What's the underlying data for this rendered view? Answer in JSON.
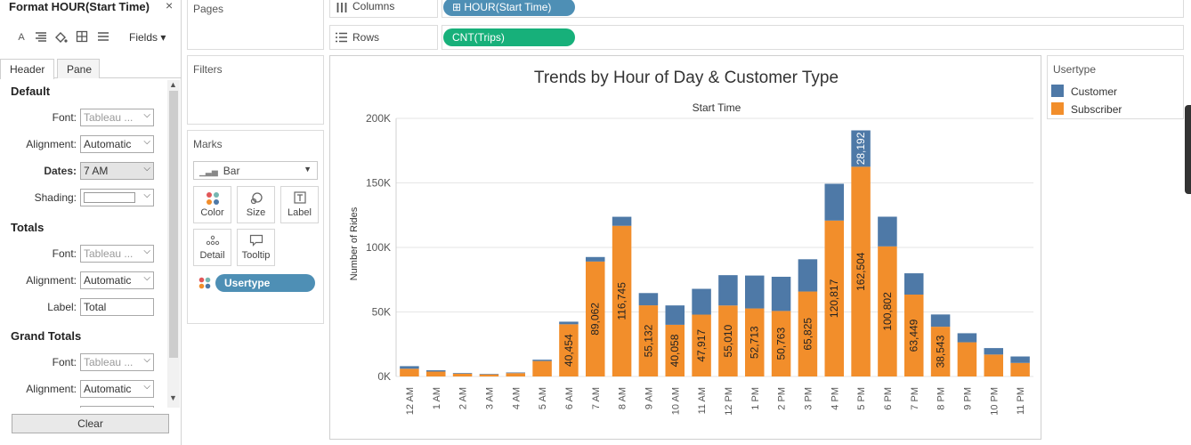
{
  "format_pane": {
    "title": "Format HOUR(Start Time)",
    "close": "×",
    "toolbar": {
      "fields_label": "Fields ▾"
    },
    "tabs": [
      "Header",
      "Pane"
    ],
    "sections": {
      "default": {
        "title": "Default",
        "font_label": "Font:",
        "font_value": "Tableau ...",
        "alignment_label": "Alignment:",
        "alignment_value": "Automatic",
        "dates_label": "Dates:",
        "dates_value": "7 AM",
        "shading_label": "Shading:"
      },
      "totals": {
        "title": "Totals",
        "font_label": "Font:",
        "font_value": "Tableau ...",
        "alignment_label": "Alignment:",
        "alignment_value": "Automatic",
        "label_label": "Label:",
        "label_value": "Total"
      },
      "grand_totals": {
        "title": "Grand Totals",
        "font_label": "Font:",
        "font_value": "Tableau ...",
        "alignment_label": "Alignment:",
        "alignment_value": "Automatic"
      }
    },
    "clear_label": "Clear"
  },
  "shelves": {
    "pages_title": "Pages",
    "filters_title": "Filters",
    "marks": {
      "title": "Marks",
      "type": "Bar",
      "buttons": [
        "Color",
        "Size",
        "Label",
        "Detail",
        "Tooltip"
      ],
      "pill": "Usertype"
    },
    "columns_label": "Columns",
    "columns_pill": "⊞ HOUR(Start Time)",
    "rows_label": "Rows",
    "rows_pill": "CNT(Trips)"
  },
  "legend": {
    "title": "Usertype",
    "items": [
      {
        "label": "Customer",
        "color": "#4e79a7"
      },
      {
        "label": "Subscriber",
        "color": "#f28e2b"
      }
    ]
  },
  "chart_data": {
    "type": "bar",
    "stacked": true,
    "title": "Trends by Hour of Day & Customer Type",
    "xlabel": "Start Time",
    "ylabel": "Number of Rides",
    "ylim": [
      0,
      200000
    ],
    "yticks": [
      "0K",
      "50K",
      "100K",
      "150K",
      "200K"
    ],
    "categories": [
      "12 AM",
      "1 AM",
      "2 AM",
      "3 AM",
      "4 AM",
      "5 AM",
      "6 AM",
      "7 AM",
      "8 AM",
      "9 AM",
      "10 AM",
      "11 AM",
      "12 PM",
      "1 PM",
      "2 PM",
      "3 PM",
      "4 PM",
      "5 PM",
      "6 PM",
      "7 PM",
      "8 PM",
      "9 PM",
      "10 PM",
      "11 PM"
    ],
    "series": [
      {
        "name": "Subscriber",
        "color": "#f28e2b",
        "values": [
          6000,
          3800,
          2200,
          1600,
          2600,
          12000,
          40454,
          89062,
          116745,
          55132,
          40058,
          47917,
          55010,
          52713,
          50763,
          65825,
          120817,
          162504,
          100802,
          63449,
          38543,
          26500,
          17000,
          10500
        ],
        "labels": [
          "",
          "",
          "",
          "",
          "",
          "",
          "40,454",
          "89,062",
          "116,745",
          "55,132",
          "40,058",
          "47,917",
          "55,010",
          "52,713",
          "50,763",
          "65,825",
          "120,817",
          "162,504",
          "100,802",
          "63,449",
          "38,543",
          "",
          "",
          ""
        ]
      },
      {
        "name": "Customer",
        "color": "#4e79a7",
        "values": [
          2000,
          1000,
          500,
          400,
          500,
          1000,
          2000,
          3500,
          7000,
          9500,
          15000,
          20000,
          23500,
          25500,
          26500,
          25000,
          28500,
          28192,
          23000,
          16500,
          9500,
          7000,
          5000,
          5000
        ],
        "labels": [
          "",
          "",
          "",
          "",
          "",
          "",
          "",
          "",
          "",
          "",
          "",
          "",
          "",
          "",
          "",
          "",
          "",
          "28,192",
          "",
          "",
          "",
          "",
          "",
          ""
        ]
      }
    ]
  }
}
